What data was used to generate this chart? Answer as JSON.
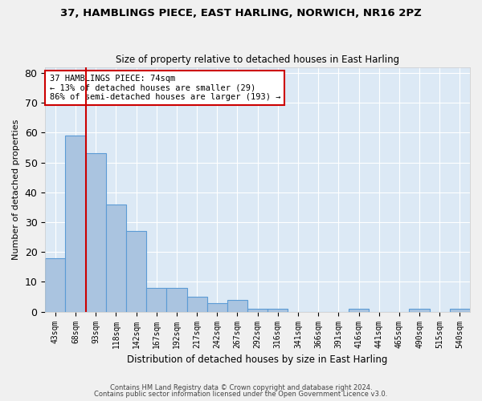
{
  "title1": "37, HAMBLINGS PIECE, EAST HARLING, NORWICH, NR16 2PZ",
  "title2": "Size of property relative to detached houses in East Harling",
  "xlabel": "Distribution of detached houses by size in East Harling",
  "ylabel": "Number of detached properties",
  "categories": [
    "43sqm",
    "68sqm",
    "93sqm",
    "118sqm",
    "142sqm",
    "167sqm",
    "192sqm",
    "217sqm",
    "242sqm",
    "267sqm",
    "292sqm",
    "316sqm",
    "341sqm",
    "366sqm",
    "391sqm",
    "416sqm",
    "441sqm",
    "465sqm",
    "490sqm",
    "515sqm",
    "540sqm"
  ],
  "values": [
    18,
    59,
    53,
    36,
    27,
    8,
    8,
    5,
    3,
    4,
    1,
    1,
    0,
    0,
    0,
    1,
    0,
    0,
    1,
    0,
    1
  ],
  "bar_color": "#aac4e0",
  "bar_edge_color": "#5b9bd5",
  "background_color": "#dce9f5",
  "grid_color": "#ffffff",
  "vline_x": 1.5,
  "vline_color": "#cc0000",
  "annotation_text": "37 HAMBLINGS PIECE: 74sqm\n← 13% of detached houses are smaller (29)\n86% of semi-detached houses are larger (193) →",
  "annotation_box_color": "#ffffff",
  "annotation_box_edge": "#cc0000",
  "ylim": [
    0,
    82
  ],
  "yticks": [
    0,
    10,
    20,
    30,
    40,
    50,
    60,
    70,
    80
  ],
  "footnote1": "Contains HM Land Registry data © Crown copyright and database right 2024.",
  "footnote2": "Contains public sector information licensed under the Open Government Licence v3.0."
}
